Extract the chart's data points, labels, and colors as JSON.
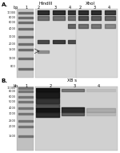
{
  "panel_A_label": "A.",
  "panel_B_label": "B.",
  "HindIII_label": "HindIII",
  "XhoI_label": "XhoI",
  "XBs_label": "XB s",
  "bp_label": "bp",
  "kb_label": "kb",
  "lane_labels_A": [
    "1",
    "2",
    "3",
    "4",
    "2",
    "3",
    "4"
  ],
  "lane_labels_B": [
    "1",
    "2",
    "3",
    "4"
  ],
  "marker_sizes_A": [
    "10000",
    "8000",
    "6000",
    "4000",
    "3000",
    "2000",
    "1500",
    "1200",
    "800"
  ],
  "marker_sizes_B": [
    "10000",
    "8000",
    "6000",
    "5000",
    "4000",
    "3000",
    "2500",
    "2000",
    "1500"
  ],
  "bg_color": "#e8e8e8",
  "band_dark": "#2a2a2a",
  "band_medium": "#555555",
  "band_light": "#888888",
  "white": "#ffffff",
  "figure_bg": "#ffffff"
}
